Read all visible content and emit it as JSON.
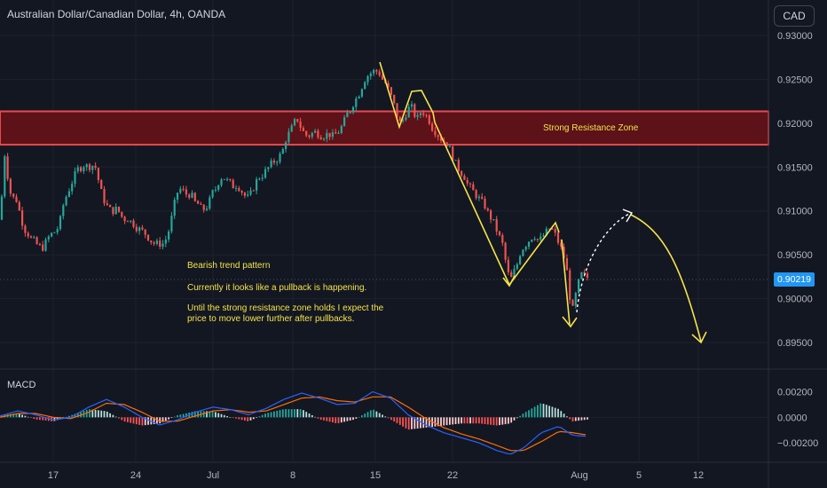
{
  "header": {
    "title": "Australian Dollar/Canadian Dollar, 4h, OANDA",
    "currency_badge": "CAD"
  },
  "price_axis": {
    "ticks": [
      "0.93000",
      "0.92500",
      "0.92000",
      "0.91500",
      "0.91000",
      "0.90500",
      "0.90000",
      "0.89500"
    ],
    "current_price": "0.90219"
  },
  "macd_panel": {
    "label": "MACD",
    "ticks": [
      "0.00200",
      "0.0000",
      "−0.00200"
    ]
  },
  "time_axis": {
    "labels": [
      "17",
      "24",
      "Jul",
      "8",
      "15",
      "22",
      "Aug",
      "5",
      "12"
    ]
  },
  "annotations": {
    "resistance_label": "Strong Resistance Zone",
    "line1": "Bearish trend pattern",
    "line2": "Currently it looks like a pullback is happening.",
    "line3a": "Until the strong resistance zone holds I expect the",
    "line3b": "price to move lower further after pullbacks."
  },
  "colors": {
    "background": "#131722",
    "bull": "#26a69a",
    "bear": "#ef5350",
    "annotation": "#f5e34a",
    "resistance_fill": "#5c1218",
    "resistance_border": "#e84a4f",
    "macd_line": "#2962ff",
    "signal_line": "#ff6d00",
    "price_tag": "#2196f3"
  },
  "chart_data": {
    "type": "candlestick",
    "symbol": "AUD/CAD",
    "timeframe": "4h",
    "ylim": [
      0.8925,
      0.9335
    ],
    "price_path": [
      [
        0,
        0.909
      ],
      [
        3,
        0.913
      ],
      [
        6,
        0.9175
      ],
      [
        9,
        0.9135
      ],
      [
        12,
        0.912
      ],
      [
        15,
        0.9115
      ],
      [
        19,
        0.9112
      ],
      [
        23,
        0.9095
      ],
      [
        27,
        0.908
      ],
      [
        31,
        0.9075
      ],
      [
        35,
        0.9068
      ],
      [
        39,
        0.9065
      ],
      [
        43,
        0.906
      ],
      [
        48,
        0.9058
      ],
      [
        52,
        0.9065
      ],
      [
        56,
        0.9072
      ],
      [
        60,
        0.9075
      ],
      [
        64,
        0.9078
      ],
      [
        68,
        0.909
      ],
      [
        72,
        0.911
      ],
      [
        76,
        0.912
      ],
      [
        80,
        0.913
      ],
      [
        84,
        0.914
      ],
      [
        88,
        0.9148
      ],
      [
        92,
        0.915
      ],
      [
        95,
        0.9153
      ],
      [
        99,
        0.915
      ],
      [
        103,
        0.9152
      ],
      [
        107,
        0.9152
      ],
      [
        111,
        0.9135
      ],
      [
        115,
        0.9118
      ],
      [
        119,
        0.9108
      ],
      [
        123,
        0.9102
      ],
      [
        127,
        0.91
      ],
      [
        131,
        0.9102
      ],
      [
        135,
        0.9098
      ],
      [
        139,
        0.909
      ],
      [
        143,
        0.9092
      ],
      [
        147,
        0.9088
      ],
      [
        151,
        0.9085
      ],
      [
        155,
        0.908
      ],
      [
        159,
        0.9078
      ],
      [
        163,
        0.9075
      ],
      [
        167,
        0.907
      ],
      [
        171,
        0.9065
      ],
      [
        175,
        0.9062
      ],
      [
        179,
        0.9063
      ],
      [
        183,
        0.9062
      ],
      [
        187,
        0.9068
      ],
      [
        191,
        0.908
      ],
      [
        195,
        0.91
      ],
      [
        199,
        0.912
      ],
      [
        203,
        0.9125
      ],
      [
        207,
        0.9122
      ],
      [
        211,
        0.9118
      ],
      [
        215,
        0.912
      ],
      [
        219,
        0.911
      ],
      [
        223,
        0.9108
      ],
      [
        227,
        0.9102
      ],
      [
        231,
        0.9102
      ],
      [
        235,
        0.9108
      ],
      [
        239,
        0.912
      ],
      [
        243,
        0.9125
      ],
      [
        247,
        0.9135
      ],
      [
        251,
        0.914
      ],
      [
        255,
        0.9135
      ],
      [
        259,
        0.9132
      ],
      [
        263,
        0.9128
      ],
      [
        267,
        0.913
      ],
      [
        271,
        0.9125
      ],
      [
        275,
        0.9118
      ],
      [
        279,
        0.9115
      ],
      [
        283,
        0.912
      ],
      [
        287,
        0.913
      ],
      [
        291,
        0.9138
      ],
      [
        295,
        0.914
      ],
      [
        299,
        0.9145
      ],
      [
        303,
        0.915
      ],
      [
        307,
        0.9155
      ],
      [
        311,
        0.9158
      ],
      [
        315,
        0.9162
      ],
      [
        319,
        0.917
      ],
      [
        323,
        0.9185
      ],
      [
        327,
        0.919
      ],
      [
        331,
        0.92
      ],
      [
        335,
        0.9205
      ],
      [
        339,
        0.9195
      ],
      [
        343,
        0.9188
      ],
      [
        347,
        0.9185
      ],
      [
        351,
        0.9188
      ],
      [
        355,
        0.919
      ],
      [
        359,
        0.9188
      ],
      [
        363,
        0.9185
      ],
      [
        367,
        0.9187
      ],
      [
        371,
        0.9188
      ],
      [
        375,
        0.9185
      ],
      [
        379,
        0.9188
      ],
      [
        383,
        0.9192
      ],
      [
        387,
        0.92
      ],
      [
        391,
        0.921
      ],
      [
        395,
        0.9215
      ],
      [
        399,
        0.9225
      ],
      [
        403,
        0.923
      ],
      [
        407,
        0.924
      ],
      [
        411,
        0.925
      ],
      [
        415,
        0.9255
      ],
      [
        419,
        0.9258
      ],
      [
        423,
        0.926
      ],
      [
        427,
        0.9258
      ],
      [
        431,
        0.925
      ],
      [
        435,
        0.9245
      ],
      [
        439,
        0.9235
      ],
      [
        443,
        0.9225
      ],
      [
        447,
        0.921
      ],
      [
        451,
        0.92
      ],
      [
        455,
        0.9205
      ],
      [
        459,
        0.9215
      ],
      [
        463,
        0.922
      ],
      [
        467,
        0.921
      ],
      [
        471,
        0.9205
      ],
      [
        475,
        0.9215
      ],
      [
        479,
        0.921
      ],
      [
        483,
        0.9205
      ],
      [
        487,
        0.9195
      ],
      [
        491,
        0.919
      ],
      [
        495,
        0.9185
      ],
      [
        499,
        0.918
      ],
      [
        503,
        0.9178
      ],
      [
        507,
        0.917
      ],
      [
        511,
        0.916
      ],
      [
        515,
        0.915
      ],
      [
        519,
        0.9145
      ],
      [
        523,
        0.914
      ],
      [
        527,
        0.913
      ],
      [
        531,
        0.9125
      ],
      [
        535,
        0.912
      ],
      [
        539,
        0.9115
      ],
      [
        543,
        0.911
      ],
      [
        547,
        0.9105
      ],
      [
        551,
        0.9095
      ],
      [
        555,
        0.909
      ],
      [
        559,
        0.908
      ],
      [
        563,
        0.907
      ],
      [
        567,
        0.906
      ],
      [
        571,
        0.9035
      ],
      [
        575,
        0.902
      ],
      [
        579,
        0.903
      ],
      [
        583,
        0.904
      ],
      [
        587,
        0.9055
      ],
      [
        591,
        0.906
      ],
      [
        595,
        0.9065
      ],
      [
        599,
        0.907
      ],
      [
        603,
        0.9072
      ],
      [
        607,
        0.9065
      ],
      [
        611,
        0.907
      ],
      [
        615,
        0.9075
      ],
      [
        619,
        0.908
      ],
      [
        623,
        0.9078
      ],
      [
        627,
        0.907
      ],
      [
        631,
        0.906
      ],
      [
        635,
        0.905
      ],
      [
        639,
        0.903
      ],
      [
        643,
        0.8995
      ],
      [
        645,
        0.8985
      ],
      [
        648,
        0.9
      ],
      [
        651,
        0.9015
      ],
      [
        654,
        0.9025
      ],
      [
        657,
        0.903
      ],
      [
        660,
        0.9022
      ],
      [
        663,
        0.9025
      ]
    ],
    "resistance_zone": [
      0.91755,
      0.92135
    ],
    "macd": {
      "ylim": [
        -0.0031,
        0.0028
      ],
      "macd_path": [
        [
          0,
          0.0001
        ],
        [
          20,
          0.0005
        ],
        [
          40,
          0.0002
        ],
        [
          60,
          -0.0002
        ],
        [
          80,
          0.0
        ],
        [
          100,
          0.0008
        ],
        [
          120,
          0.0014
        ],
        [
          140,
          0.0008
        ],
        [
          160,
          0.0
        ],
        [
          180,
          -0.0006
        ],
        [
          200,
          -0.0002
        ],
        [
          220,
          0.0004
        ],
        [
          240,
          0.0008
        ],
        [
          260,
          0.0006
        ],
        [
          280,
          0.0002
        ],
        [
          300,
          0.0007
        ],
        [
          320,
          0.0014
        ],
        [
          340,
          0.0019
        ],
        [
          360,
          0.0015
        ],
        [
          380,
          0.001
        ],
        [
          400,
          0.0011
        ],
        [
          420,
          0.002
        ],
        [
          440,
          0.0015
        ],
        [
          460,
          0.0002
        ],
        [
          480,
          -0.0006
        ],
        [
          500,
          -0.0012
        ],
        [
          520,
          -0.0016
        ],
        [
          540,
          -0.002
        ],
        [
          560,
          -0.0026
        ],
        [
          575,
          -0.0029
        ],
        [
          590,
          -0.0024
        ],
        [
          610,
          -0.0012
        ],
        [
          630,
          -0.0007
        ],
        [
          645,
          -0.0014
        ],
        [
          663,
          -0.0015
        ]
      ],
      "signal_path": [
        [
          0,
          0.0
        ],
        [
          20,
          0.0003
        ],
        [
          40,
          0.0003
        ],
        [
          60,
          0.0
        ],
        [
          80,
          -0.0001
        ],
        [
          100,
          0.0004
        ],
        [
          120,
          0.0011
        ],
        [
          140,
          0.001
        ],
        [
          160,
          0.0004
        ],
        [
          180,
          -0.0003
        ],
        [
          200,
          -0.0003
        ],
        [
          220,
          0.0001
        ],
        [
          240,
          0.0005
        ],
        [
          260,
          0.0006
        ],
        [
          280,
          0.0004
        ],
        [
          300,
          0.0005
        ],
        [
          320,
          0.001
        ],
        [
          340,
          0.0015
        ],
        [
          360,
          0.0016
        ],
        [
          380,
          0.0013
        ],
        [
          400,
          0.0012
        ],
        [
          420,
          0.0016
        ],
        [
          440,
          0.0016
        ],
        [
          460,
          0.0008
        ],
        [
          480,
          -0.0001
        ],
        [
          500,
          -0.0008
        ],
        [
          520,
          -0.0013
        ],
        [
          540,
          -0.0017
        ],
        [
          560,
          -0.0022
        ],
        [
          575,
          -0.0026
        ],
        [
          590,
          -0.0026
        ],
        [
          610,
          -0.0019
        ],
        [
          630,
          -0.0011
        ],
        [
          645,
          -0.0012
        ],
        [
          663,
          -0.0014
        ]
      ]
    }
  }
}
